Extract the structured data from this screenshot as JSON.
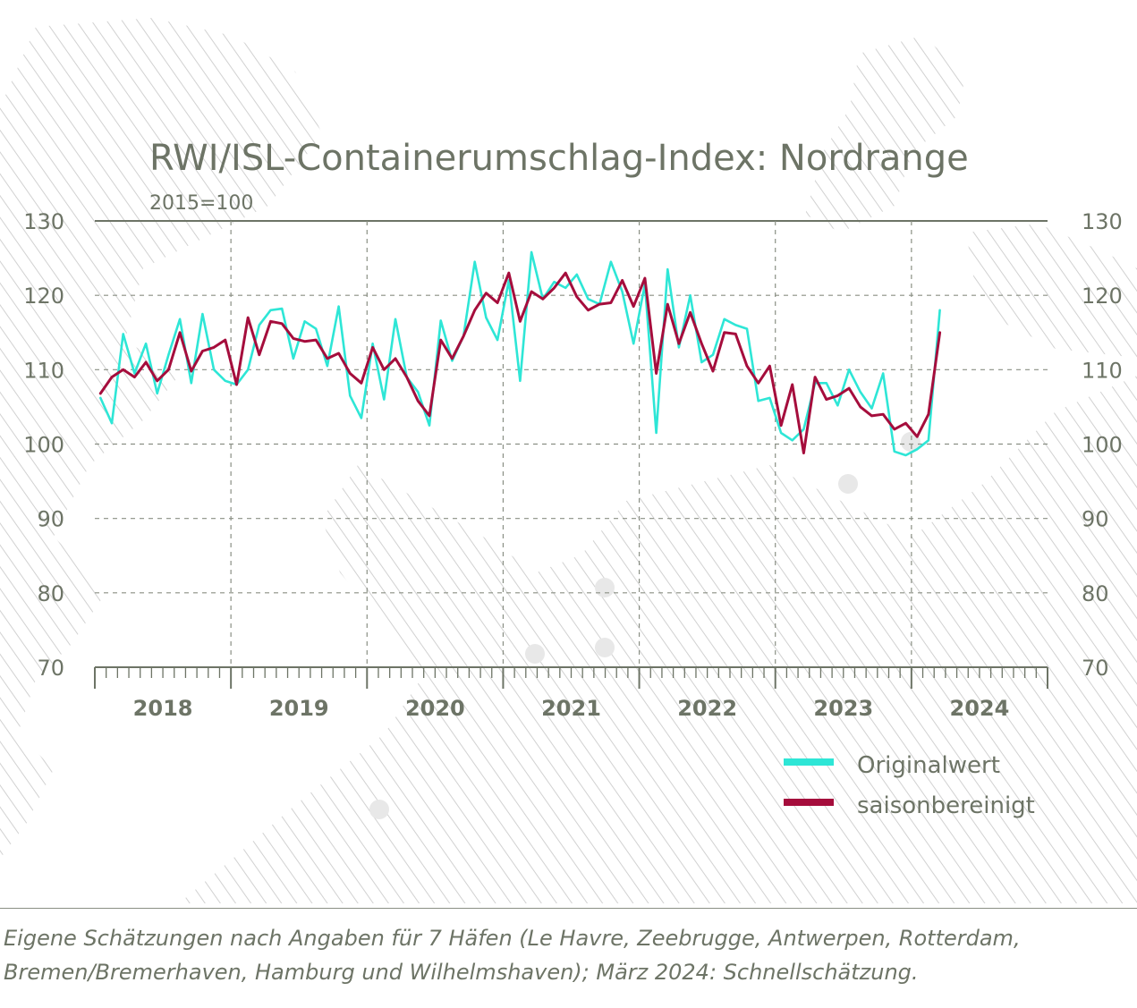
{
  "chart_data": {
    "type": "line",
    "title": "RWI/ISL-Containerumschlag-Index: Nordrange",
    "subtitle": "2015=100",
    "ylim": [
      70,
      130
    ],
    "y_ticks": [
      70,
      80,
      90,
      100,
      110,
      120,
      130
    ],
    "x_start": "2018-01",
    "x_end": "2024-12",
    "years": [
      "2018",
      "2019",
      "2020",
      "2021",
      "2022",
      "2023",
      "2024"
    ],
    "grid": true,
    "legend_position": "bottom-right",
    "series": [
      {
        "name": "Originalwert",
        "color": "#2ee6d6",
        "values": [
          106.2,
          102.8,
          114.8,
          109.5,
          113.5,
          106.8,
          112.0,
          116.8,
          108.2,
          117.5,
          110.0,
          108.5,
          108.0,
          110.0,
          116.0,
          118.0,
          118.2,
          111.5,
          116.5,
          115.5,
          110.5,
          118.5,
          106.5,
          103.5,
          113.5,
          106.0,
          116.8,
          109.0,
          107.0,
          102.5,
          116.6,
          111.2,
          114.5,
          124.5,
          117.0,
          114.0,
          122.0,
          108.5,
          125.8,
          119.5,
          121.8,
          121.0,
          122.8,
          119.5,
          118.8,
          124.5,
          120.5,
          113.5,
          121.5,
          101.5,
          123.5,
          113.0,
          120.0,
          111.0,
          112.0,
          116.8,
          116.0,
          115.5,
          105.8,
          106.2,
          101.5,
          100.5,
          102.0,
          108.2,
          108.2,
          105.2,
          110.0,
          107.0,
          104.8,
          109.5,
          99.0,
          98.5,
          99.3,
          100.5,
          118.0
        ],
        "vertical_labels": []
      },
      {
        "name": "saisonbereinigt",
        "color": "#a50d3c",
        "values": [
          106.8,
          109.0,
          110.0,
          109.0,
          111.0,
          108.5,
          110.0,
          115.0,
          109.8,
          112.5,
          113.0,
          114.0,
          108.0,
          117.0,
          112.0,
          116.5,
          116.2,
          114.2,
          113.8,
          114.0,
          111.5,
          112.2,
          109.5,
          108.2,
          113.0,
          110.0,
          111.5,
          109.0,
          105.8,
          103.8,
          114.0,
          111.5,
          114.5,
          118.0,
          120.3,
          119.0,
          123.0,
          116.5,
          120.5,
          119.5,
          121.0,
          123.0,
          119.8,
          118.0,
          118.8,
          119.0,
          122.0,
          118.5,
          122.3,
          109.5,
          118.8,
          113.5,
          117.7,
          113.5,
          109.8,
          115.0,
          114.8,
          110.5,
          108.2,
          110.5,
          102.5,
          108.0,
          98.8,
          109.0,
          106.0,
          106.5,
          107.5,
          105.0,
          103.8,
          104.0,
          102.0,
          102.8,
          101.0,
          104.0,
          115.0
        ]
      }
    ]
  },
  "legend": [
    {
      "label": "Originalwert",
      "color": "#2ee6d6"
    },
    {
      "label": "saisonbereinigt",
      "color": "#a50d3c"
    }
  ],
  "footnote": "Eigene Schätzungen nach Angaben für 7 Häfen (Le Havre, Zeebrugge, Antwerpen, Rotterdam, Bremen/Bremerhaven, Hamburg und Wilhelmshaven); März 2024: Schnellschätzung."
}
